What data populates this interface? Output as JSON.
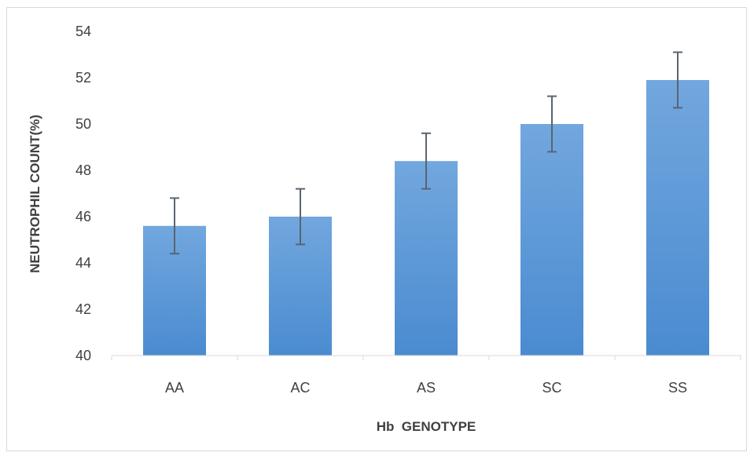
{
  "chart_data": {
    "type": "bar",
    "title": "",
    "xlabel": "Hb  GENOTYPE",
    "ylabel": "NEUTROPHIL COUNT(%)",
    "categories": [
      "AA",
      "AC",
      "AS",
      "SC",
      "SS"
    ],
    "values": [
      45.6,
      46.0,
      48.4,
      50.0,
      51.9
    ],
    "error": [
      1.2,
      1.2,
      1.2,
      1.2,
      1.2
    ],
    "ylim": [
      40,
      54
    ],
    "yticks": [
      40,
      42,
      44,
      46,
      48,
      50,
      52,
      54
    ],
    "grid": false,
    "legend": "none",
    "bar_color_top": "#72a7de",
    "bar_color_bottom": "#4a8bd0",
    "error_bar_color": "#5a6470",
    "axis_color": "#d9d9d9",
    "text_color": "#404040"
  }
}
